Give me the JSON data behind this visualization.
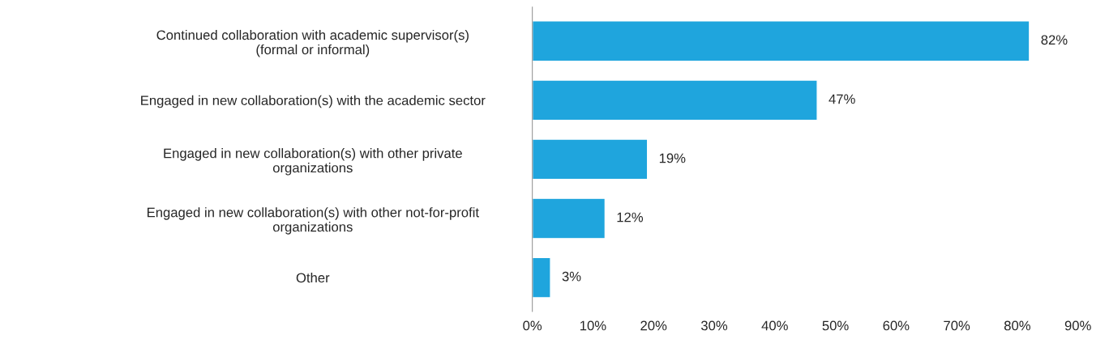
{
  "chart_data": {
    "type": "bar",
    "orientation": "horizontal",
    "categories": [
      "Continued collaboration with academic supervisor(s)\n(formal or informal)",
      "Engaged in new collaboration(s) with the academic sector",
      "Engaged in new collaboration(s) with other private\norganizations",
      "Engaged in new collaboration(s) with other not-for-profit\norganizations",
      "Other"
    ],
    "values": [
      82,
      47,
      19,
      12,
      3
    ],
    "value_labels": [
      "82%",
      "47%",
      "19%",
      "12%",
      "3%"
    ],
    "color": "#1fa5dd",
    "xlim": [
      0,
      90
    ],
    "xticks": [
      {
        "value": 0,
        "label": "0%"
      },
      {
        "value": 10,
        "label": "10%"
      },
      {
        "value": 20,
        "label": "20%"
      },
      {
        "value": 30,
        "label": "30%"
      },
      {
        "value": 40,
        "label": "40%"
      },
      {
        "value": 50,
        "label": "50%"
      },
      {
        "value": 60,
        "label": "60%"
      },
      {
        "value": 70,
        "label": "70%"
      },
      {
        "value": 80,
        "label": "80%"
      },
      {
        "value": 90,
        "label": "90%"
      }
    ],
    "grid": false,
    "legend": false
  }
}
